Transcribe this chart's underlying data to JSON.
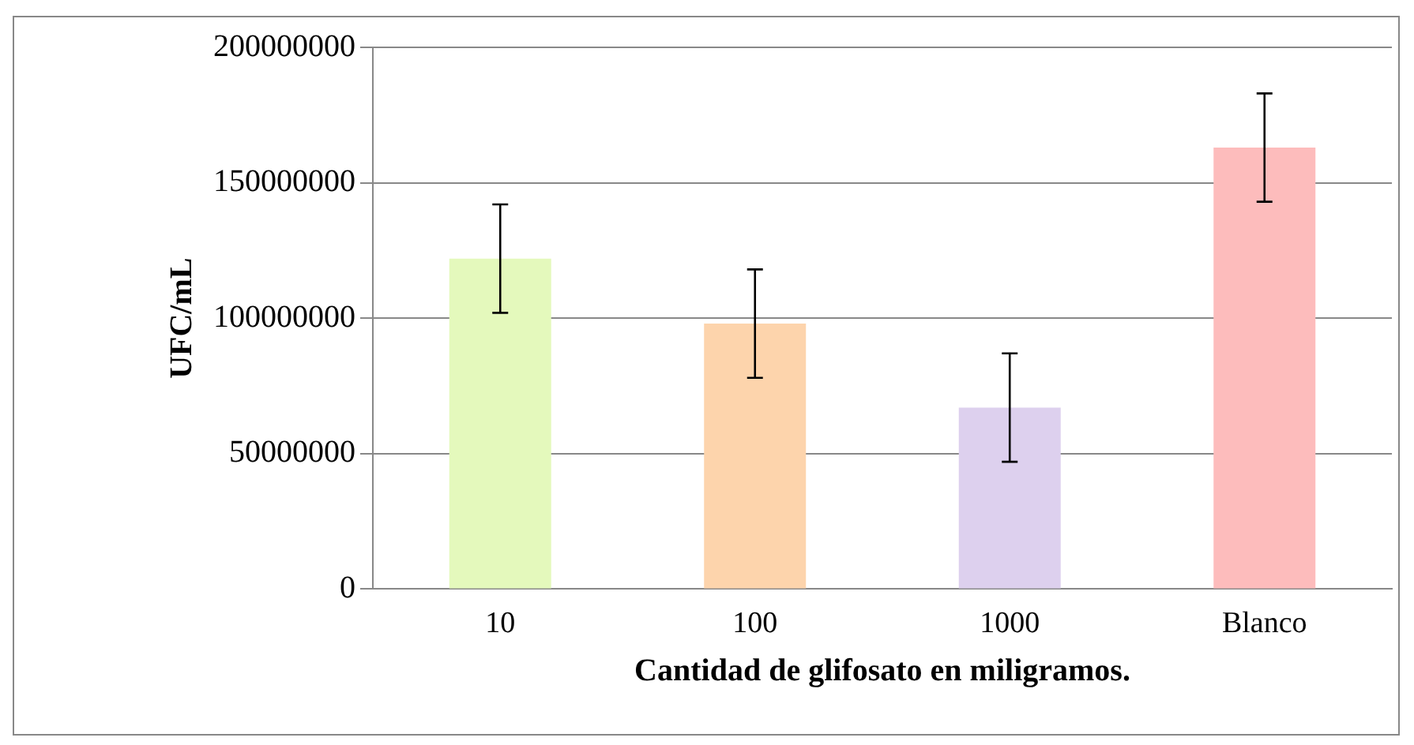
{
  "chart_data": {
    "type": "bar",
    "xlabel": "Cantidad de glifosato en miligramos.",
    "ylabel": "UFC/mL",
    "categories": [
      "10",
      "100",
      "1000",
      "Blanco"
    ],
    "values": [
      122000000,
      98000000,
      67000000,
      163000000
    ],
    "errors": [
      20000000,
      20000000,
      20000000,
      20000000
    ],
    "colors": [
      "#e4f9bc",
      "#fdd4ac",
      "#ddd0ee",
      "#fdbcbc"
    ],
    "ylim": [
      0,
      200000000
    ],
    "yticks": [
      0,
      50000000,
      100000000,
      150000000,
      200000000
    ],
    "grid": "y",
    "legend": false
  }
}
